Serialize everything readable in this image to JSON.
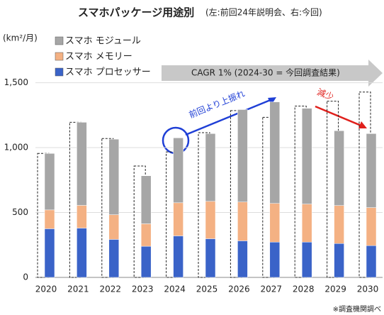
{
  "chart_data": {
    "type": "bar",
    "stacked": true,
    "title": "スマホパッケージ用途別",
    "subtitle": "(左:前回24年説明会、右:今回)",
    "y_label": "(km²/月)",
    "categories": [
      "2020",
      "2021",
      "2022",
      "2023",
      "2024",
      "2025",
      "2026",
      "2027",
      "2028",
      "2029",
      "2030"
    ],
    "series": [
      {
        "name": "スマホ プロセッサー",
        "color": "#3a63c8",
        "values": [
          375,
          380,
          293,
          240,
          320,
          298,
          282,
          272,
          272,
          261,
          245
        ]
      },
      {
        "name": "スマホ メモリー",
        "color": "#f4b183",
        "values": [
          145,
          175,
          190,
          173,
          255,
          288,
          299,
          298,
          293,
          293,
          293
        ]
      },
      {
        "name": "スマホ モジュール",
        "color": "#a6a6a6",
        "values": [
          435,
          640,
          582,
          370,
          500,
          522,
          712,
          782,
          738,
          576,
          570
        ]
      }
    ],
    "previous": {
      "values": [
        955,
        1195,
        1070,
        858,
        967,
        1115,
        1285,
        1233,
        1320,
        1358,
        1428
      ]
    },
    "ylim": [
      0,
      1700
    ],
    "yticks": [
      0,
      {
        "value": 500,
        "label": "500"
      },
      {
        "value": 1000,
        "label": "1,000"
      },
      {
        "value": 1500,
        "label": "1,500"
      }
    ],
    "annotations": [
      "CAGR 1% (2024-30 = 今回調査結果)",
      "前回より上振れ",
      "減少"
    ],
    "footnote": "※調査機関調べ"
  }
}
